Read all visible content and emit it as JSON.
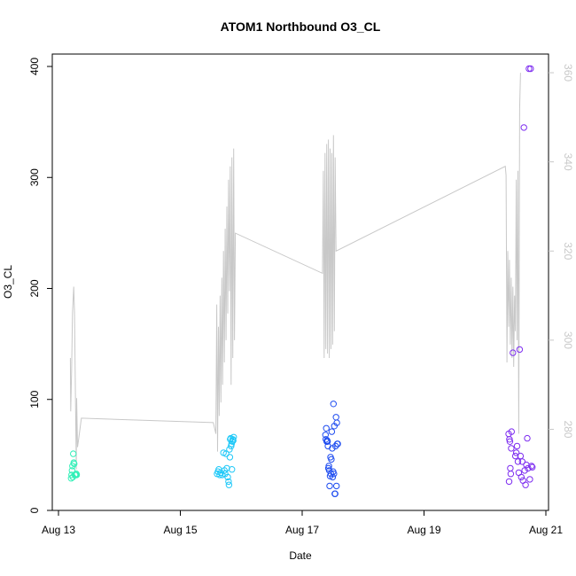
{
  "chart_data": {
    "type": "scatter",
    "title": "ATOM1 Northbound O3_CL",
    "xlabel": "Date",
    "ylabel": "O3_CL",
    "x_ticks": [
      {
        "label": "Aug 13",
        "value": "2000-08-13"
      },
      {
        "label": "Aug 15",
        "value": "2000-08-15"
      },
      {
        "label": "Aug 17",
        "value": "2000-08-17"
      },
      {
        "label": "Aug 19",
        "value": "2000-08-19"
      },
      {
        "label": "Aug 21",
        "value": "2000-08-21"
      }
    ],
    "xlim": [
      "2000-08-12T20:00",
      "2000-08-21T02:00"
    ],
    "ylim": [
      0,
      400
    ],
    "y_ticks": [
      0,
      100,
      200,
      300,
      400
    ],
    "y2lim": [
      262,
      362
    ],
    "y2_ticks": [
      280,
      300,
      320,
      340,
      360
    ],
    "grid": false,
    "series": [
      {
        "color": "#33f0b8",
        "points": [
          [
            "2000-08-13T05:00",
            29
          ],
          [
            "2000-08-13T05:10",
            32
          ],
          [
            "2000-08-13T05:20",
            36
          ],
          [
            "2000-08-13T05:30",
            40
          ],
          [
            "2000-08-13T05:40",
            30
          ],
          [
            "2000-08-13T05:50",
            51
          ],
          [
            "2000-08-13T06:00",
            43
          ],
          [
            "2000-08-13T06:10",
            42
          ],
          [
            "2000-08-13T06:30",
            32
          ],
          [
            "2000-08-13T06:40",
            32
          ],
          [
            "2000-08-13T06:50",
            32
          ],
          [
            "2000-08-13T07:00",
            33
          ],
          [
            "2000-08-13T07:10",
            32
          ]
        ]
      },
      {
        "color": "#1ec8f8",
        "points": [
          [
            "2000-08-15T14:30",
            33
          ],
          [
            "2000-08-15T14:50",
            35
          ],
          [
            "2000-08-15T15:10",
            37
          ],
          [
            "2000-08-15T15:30",
            32
          ],
          [
            "2000-08-15T16:00",
            34
          ],
          [
            "2000-08-15T16:30",
            32
          ],
          [
            "2000-08-15T17:00",
            52
          ],
          [
            "2000-08-15T17:20",
            36
          ],
          [
            "2000-08-15T17:40",
            33
          ],
          [
            "2000-08-15T18:00",
            51
          ],
          [
            "2000-08-15T18:20",
            38
          ],
          [
            "2000-08-15T18:40",
            30
          ],
          [
            "2000-08-15T19:00",
            26
          ],
          [
            "2000-08-15T19:10",
            23
          ],
          [
            "2000-08-15T19:20",
            55
          ],
          [
            "2000-08-15T19:30",
            48
          ],
          [
            "2000-08-15T19:40",
            64
          ],
          [
            "2000-08-15T19:50",
            65
          ],
          [
            "2000-08-15T20:00",
            58
          ],
          [
            "2000-08-15T20:10",
            60
          ],
          [
            "2000-08-15T20:20",
            37
          ],
          [
            "2000-08-15T20:30",
            62
          ],
          [
            "2000-08-15T20:40",
            64
          ],
          [
            "2000-08-15T20:50",
            63
          ],
          [
            "2000-08-15T21:00",
            66
          ]
        ]
      },
      {
        "color": "#1e4cf0",
        "points": [
          [
            "2000-08-17T09:10",
            68
          ],
          [
            "2000-08-17T09:20",
            64
          ],
          [
            "2000-08-17T09:30",
            74
          ],
          [
            "2000-08-17T09:40",
            62
          ],
          [
            "2000-08-17T09:50",
            63
          ],
          [
            "2000-08-17T10:00",
            62
          ],
          [
            "2000-08-17T10:10",
            58
          ],
          [
            "2000-08-17T10:20",
            38
          ],
          [
            "2000-08-17T10:30",
            40
          ],
          [
            "2000-08-17T10:40",
            36
          ],
          [
            "2000-08-17T10:50",
            22
          ],
          [
            "2000-08-17T11:00",
            31
          ],
          [
            "2000-08-17T11:10",
            48
          ],
          [
            "2000-08-17T11:20",
            33
          ],
          [
            "2000-08-17T11:30",
            46
          ],
          [
            "2000-08-17T11:40",
            71
          ],
          [
            "2000-08-17T11:50",
            56
          ],
          [
            "2000-08-17T12:00",
            30
          ],
          [
            "2000-08-17T12:10",
            35
          ],
          [
            "2000-08-17T12:20",
            96
          ],
          [
            "2000-08-17T12:30",
            33
          ],
          [
            "2000-08-17T12:40",
            76
          ],
          [
            "2000-08-17T12:50",
            15
          ],
          [
            "2000-08-17T13:00",
            15
          ],
          [
            "2000-08-17T13:10",
            58
          ],
          [
            "2000-08-17T13:20",
            84
          ],
          [
            "2000-08-17T13:30",
            22
          ],
          [
            "2000-08-17T13:40",
            79
          ],
          [
            "2000-08-17T13:50",
            60
          ],
          [
            "2000-08-17T14:00",
            60
          ]
        ]
      },
      {
        "color": "#7e2ef0",
        "points": [
          [
            "2000-08-20T09:20",
            69
          ],
          [
            "2000-08-20T09:30",
            26
          ],
          [
            "2000-08-20T09:40",
            64
          ],
          [
            "2000-08-20T09:50",
            62
          ],
          [
            "2000-08-20T10:00",
            38
          ],
          [
            "2000-08-20T10:10",
            33
          ],
          [
            "2000-08-20T10:20",
            56
          ],
          [
            "2000-08-20T10:30",
            71
          ],
          [
            "2000-08-20T11:00",
            142
          ],
          [
            "2000-08-20T12:00",
            49
          ],
          [
            "2000-08-20T12:20",
            52
          ],
          [
            "2000-08-20T12:40",
            58
          ],
          [
            "2000-08-20T13:00",
            44
          ],
          [
            "2000-08-20T13:20",
            34
          ],
          [
            "2000-08-20T13:40",
            145
          ],
          [
            "2000-08-20T14:00",
            49
          ],
          [
            "2000-08-20T14:20",
            30
          ],
          [
            "2000-08-20T14:40",
            44
          ],
          [
            "2000-08-20T15:00",
            27
          ],
          [
            "2000-08-20T15:20",
            345
          ],
          [
            "2000-08-20T15:40",
            36
          ],
          [
            "2000-08-20T16:00",
            23
          ],
          [
            "2000-08-20T16:20",
            41
          ],
          [
            "2000-08-20T16:40",
            65
          ],
          [
            "2000-08-20T17:00",
            38
          ],
          [
            "2000-08-20T17:20",
            398
          ],
          [
            "2000-08-20T17:40",
            28
          ],
          [
            "2000-08-20T18:00",
            398
          ],
          [
            "2000-08-20T18:20",
            40
          ],
          [
            "2000-08-20T18:40",
            39
          ]
        ]
      }
    ],
    "secondary_line": {
      "axis": "right",
      "color": "#c8c8c8",
      "points": [
        [
          "2000-08-13T04:40",
          296
        ],
        [
          "2000-08-13T04:50",
          284
        ],
        [
          "2000-08-13T05:10",
          293
        ],
        [
          "2000-08-13T05:30",
          306
        ],
        [
          "2000-08-13T06:00",
          312
        ],
        [
          "2000-08-13T06:20",
          306
        ],
        [
          "2000-08-13T06:40",
          288
        ],
        [
          "2000-08-13T07:00",
          271
        ],
        [
          "2000-08-13T07:10",
          287
        ],
        [
          "2000-08-13T07:30",
          276
        ],
        [
          "2000-08-13T08:00",
          278
        ],
        [
          "2000-08-13T09:00",
          282.5
        ],
        [
          "2000-08-15T13:00",
          281.5
        ],
        [
          "2000-08-15T14:00",
          279
        ],
        [
          "2000-08-15T14:20",
          308
        ],
        [
          "2000-08-15T14:40",
          275
        ],
        [
          "2000-08-15T15:00",
          303
        ],
        [
          "2000-08-15T15:20",
          283
        ],
        [
          "2000-08-15T15:40",
          310
        ],
        [
          "2000-08-15T16:00",
          286
        ],
        [
          "2000-08-15T16:20",
          314
        ],
        [
          "2000-08-15T16:40",
          290
        ],
        [
          "2000-08-15T17:00",
          320
        ],
        [
          "2000-08-15T17:20",
          295
        ],
        [
          "2000-08-15T17:40",
          325
        ],
        [
          "2000-08-15T18:00",
          300
        ],
        [
          "2000-08-15T18:20",
          330
        ],
        [
          "2000-08-15T18:40",
          306
        ],
        [
          "2000-08-15T19:00",
          336
        ],
        [
          "2000-08-15T19:20",
          311
        ],
        [
          "2000-08-15T19:40",
          339
        ],
        [
          "2000-08-15T20:00",
          290
        ],
        [
          "2000-08-15T20:20",
          341
        ],
        [
          "2000-08-15T20:40",
          296
        ],
        [
          "2000-08-15T21:00",
          343
        ],
        [
          "2000-08-15T21:20",
          300
        ],
        [
          "2000-08-15T21:40",
          324
        ],
        [
          "2000-08-17T08:00",
          315
        ],
        [
          "2000-08-17T08:20",
          338
        ],
        [
          "2000-08-17T08:40",
          296
        ],
        [
          "2000-08-17T09:00",
          342
        ],
        [
          "2000-08-17T09:20",
          298
        ],
        [
          "2000-08-17T09:40",
          344
        ],
        [
          "2000-08-17T10:00",
          297
        ],
        [
          "2000-08-17T10:20",
          345
        ],
        [
          "2000-08-17T10:40",
          296
        ],
        [
          "2000-08-17T11:00",
          343
        ],
        [
          "2000-08-17T11:20",
          298
        ],
        [
          "2000-08-17T11:40",
          342
        ],
        [
          "2000-08-17T12:00",
          299
        ],
        [
          "2000-08-17T12:20",
          346
        ],
        [
          "2000-08-17T12:40",
          302
        ],
        [
          "2000-08-17T13:00",
          341
        ],
        [
          "2000-08-17T13:20",
          320
        ],
        [
          "2000-08-20T08:00",
          339
        ],
        [
          "2000-08-20T08:20",
          337
        ],
        [
          "2000-08-20T08:40",
          295
        ],
        [
          "2000-08-20T09:00",
          320
        ],
        [
          "2000-08-20T09:20",
          303
        ],
        [
          "2000-08-20T09:40",
          318
        ],
        [
          "2000-08-20T10:00",
          299
        ],
        [
          "2000-08-20T10:20",
          314
        ],
        [
          "2000-08-20T10:40",
          296
        ],
        [
          "2000-08-20T11:00",
          312
        ],
        [
          "2000-08-20T11:20",
          294
        ],
        [
          "2000-08-20T11:40",
          310
        ],
        [
          "2000-08-20T12:00",
          302
        ],
        [
          "2000-08-20T12:20",
          336
        ],
        [
          "2000-08-20T12:40",
          300
        ],
        [
          "2000-08-20T13:00",
          338
        ],
        [
          "2000-08-20T13:20",
          279
        ],
        [
          "2000-08-20T13:40",
          352
        ],
        [
          "2000-08-20T14:00",
          360
        ]
      ]
    }
  }
}
